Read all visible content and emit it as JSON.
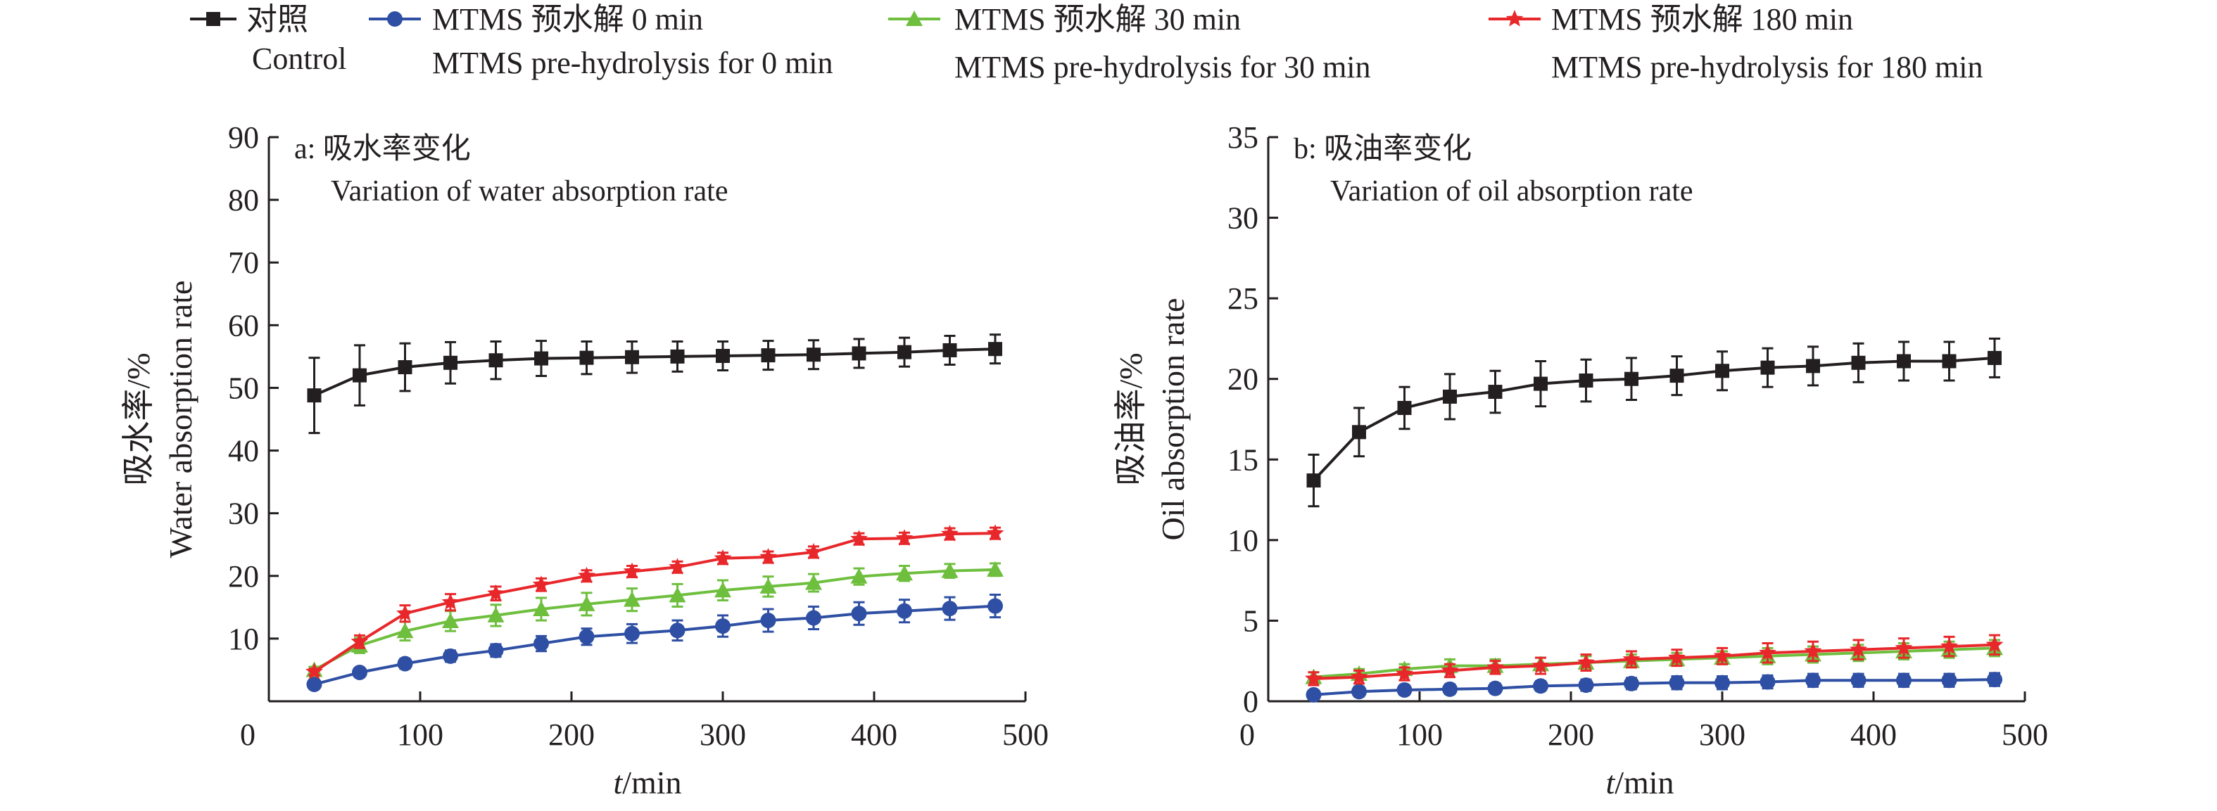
{
  "legend": {
    "entries": [
      {
        "series": 0,
        "line1": "对照",
        "line2": "Control"
      },
      {
        "series": 1,
        "line1": "MTMS 预水解 0 min",
        "line2": "MTMS pre-hydrolysis for 0 min"
      },
      {
        "series": 2,
        "line1": "MTMS 预水解 30 min",
        "line2": "MTMS pre-hydrolysis for 30 min"
      },
      {
        "series": 3,
        "line1": "MTMS 预水解 180 min",
        "line2": "MTMS pre-hydrolysis for 180 min"
      }
    ]
  },
  "chart_data": [
    {
      "type": "line",
      "title": "a: 吸水率变化",
      "subtitle": "Variation of water absorption rate",
      "xlabel_italic": "t",
      "xlabel_rest": "/min",
      "ylabel_cn": "吸水率/%",
      "ylabel_en": "Water absorption rate",
      "xlim": [
        0,
        500
      ],
      "ylim": [
        0,
        90
      ],
      "xticks": [
        0,
        100,
        200,
        300,
        400,
        500
      ],
      "yticks": [
        10,
        20,
        30,
        40,
        50,
        60,
        70,
        80,
        90
      ],
      "grid": false,
      "legend_position": "top",
      "x": [
        30,
        60,
        90,
        120,
        150,
        180,
        210,
        240,
        270,
        300,
        330,
        360,
        390,
        420,
        450,
        480
      ],
      "series": [
        {
          "name": "Control",
          "color": "#231f20",
          "marker": "square",
          "values": [
            48.8,
            52,
            53.3,
            54,
            54.4,
            54.7,
            54.8,
            54.9,
            55,
            55.1,
            55.2,
            55.3,
            55.5,
            55.7,
            56,
            56.2
          ],
          "errors": [
            6,
            4.8,
            3.8,
            3.3,
            3,
            2.8,
            2.6,
            2.5,
            2.4,
            2.3,
            2.3,
            2.3,
            2.3,
            2.3,
            2.3,
            2.3
          ]
        },
        {
          "name": "MTMS pre-hydrolysis for 0 min",
          "color": "#2e4fa3",
          "marker": "circle",
          "values": [
            2.7,
            4.6,
            6,
            7.2,
            8.1,
            9.2,
            10.3,
            10.8,
            11.3,
            12,
            12.9,
            13.3,
            14,
            14.4,
            14.8,
            15.2
          ],
          "errors": [
            0.5,
            0.6,
            0.8,
            0.9,
            1,
            1.2,
            1.3,
            1.5,
            1.6,
            1.7,
            1.8,
            1.8,
            1.8,
            1.8,
            1.8,
            1.8
          ]
        },
        {
          "name": "MTMS pre-hydrolysis for 30 min",
          "color": "#6fbf3f",
          "marker": "triangle",
          "values": [
            5,
            8.9,
            11.2,
            12.8,
            13.7,
            14.7,
            15.5,
            16.2,
            16.9,
            17.7,
            18.3,
            18.9,
            19.9,
            20.4,
            20.8,
            21
          ],
          "errors": [
            0.5,
            1.2,
            1.5,
            1.6,
            1.7,
            1.8,
            1.8,
            1.8,
            1.8,
            1.6,
            1.6,
            1.4,
            1.3,
            1.2,
            1.1,
            1
          ]
        },
        {
          "name": "MTMS pre-hydrolysis for 180 min",
          "color": "#e8272b",
          "marker": "star",
          "values": [
            4.7,
            9.5,
            14,
            15.8,
            17.2,
            18.6,
            20,
            20.7,
            21.4,
            22.8,
            23,
            23.8,
            25.9,
            26,
            26.7,
            26.8
          ],
          "errors": [
            0.5,
            1,
            1.3,
            1.3,
            1.1,
            1,
            0.9,
            0.9,
            0.9,
            0.9,
            0.9,
            0.9,
            0.9,
            0.9,
            0.9,
            0.9
          ]
        }
      ]
    },
    {
      "type": "line",
      "title": "b: 吸油率变化",
      "subtitle": "Variation of oil absorption rate",
      "xlabel_italic": "t",
      "xlabel_rest": "/min",
      "ylabel_cn": "吸油率/%",
      "ylabel_en": "Oil absorption rate",
      "xlim": [
        0,
        500
      ],
      "ylim": [
        0,
        35
      ],
      "xticks": [
        0,
        100,
        200,
        300,
        400,
        500
      ],
      "yticks": [
        0,
        5,
        10,
        15,
        20,
        25,
        30,
        35
      ],
      "grid": false,
      "legend_position": "top",
      "x": [
        30,
        60,
        90,
        120,
        150,
        180,
        210,
        240,
        270,
        300,
        330,
        360,
        390,
        420,
        450,
        480
      ],
      "series": [
        {
          "name": "Control",
          "color": "#231f20",
          "marker": "square",
          "values": [
            13.7,
            16.7,
            18.2,
            18.9,
            19.2,
            19.7,
            19.9,
            20,
            20.2,
            20.5,
            20.7,
            20.8,
            21,
            21.1,
            21.1,
            21.3
          ],
          "errors": [
            1.6,
            1.5,
            1.3,
            1.4,
            1.3,
            1.4,
            1.3,
            1.3,
            1.2,
            1.2,
            1.2,
            1.2,
            1.2,
            1.2,
            1.2,
            1.2
          ]
        },
        {
          "name": "MTMS pre-hydrolysis for 0 min",
          "color": "#2e4fa3",
          "marker": "circle",
          "values": [
            0.4,
            0.6,
            0.7,
            0.75,
            0.8,
            0.95,
            1,
            1.1,
            1.15,
            1.15,
            1.2,
            1.3,
            1.3,
            1.3,
            1.3,
            1.35
          ],
          "errors": [
            0.2,
            0.3,
            0.3,
            0.3,
            0.3,
            0.3,
            0.35,
            0.35,
            0.4,
            0.4,
            0.4,
            0.4,
            0.4,
            0.4,
            0.4,
            0.4
          ]
        },
        {
          "name": "MTMS pre-hydrolysis for 30 min",
          "color": "#6fbf3f",
          "marker": "triangle",
          "values": [
            1.5,
            1.7,
            2,
            2.2,
            2.2,
            2.3,
            2.4,
            2.5,
            2.6,
            2.7,
            2.8,
            2.9,
            3,
            3.1,
            3.2,
            3.3
          ],
          "errors": [
            0.3,
            0.3,
            0.3,
            0.4,
            0.4,
            0.4,
            0.4,
            0.4,
            0.4,
            0.4,
            0.5,
            0.5,
            0.5,
            0.5,
            0.5,
            0.5
          ]
        },
        {
          "name": "MTMS pre-hydrolysis for 180 min",
          "color": "#e8272b",
          "marker": "star",
          "values": [
            1.4,
            1.5,
            1.7,
            1.9,
            2.1,
            2.2,
            2.4,
            2.6,
            2.7,
            2.8,
            3,
            3.1,
            3.2,
            3.3,
            3.4,
            3.5
          ],
          "errors": [
            0.4,
            0.4,
            0.4,
            0.4,
            0.4,
            0.5,
            0.5,
            0.5,
            0.5,
            0.5,
            0.6,
            0.6,
            0.6,
            0.6,
            0.6,
            0.6
          ]
        }
      ]
    }
  ]
}
